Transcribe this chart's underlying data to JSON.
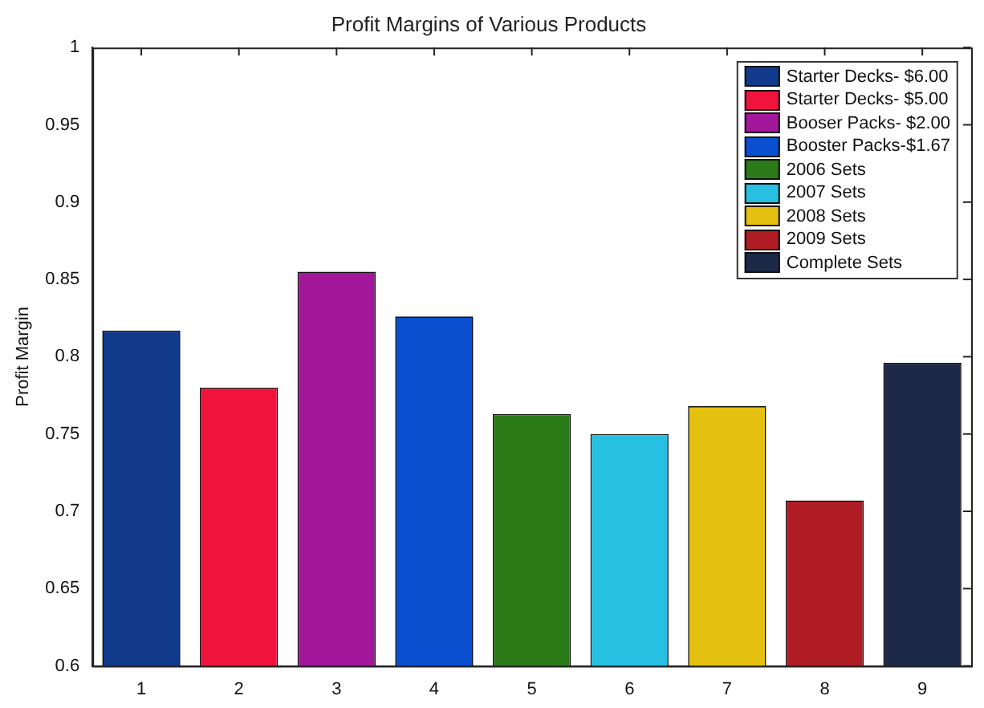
{
  "chart_data": {
    "type": "bar",
    "title": "Profit Margins of Various Products",
    "ylabel": "Profit Margin",
    "categories": [
      "1",
      "2",
      "3",
      "4",
      "5",
      "6",
      "7",
      "8",
      "9"
    ],
    "series": [
      {
        "name": "Starter Decks- $6.00",
        "color": "#123a8c",
        "values": [
          0.817,
          null,
          null,
          null,
          null,
          null,
          null,
          null,
          null
        ]
      },
      {
        "name": "Starter Decks- $5.00",
        "color": "#f0143c",
        "values": [
          null,
          0.78,
          null,
          null,
          null,
          null,
          null,
          null,
          null
        ]
      },
      {
        "name": "Booser Packs- $2.00",
        "color": "#a3189a",
        "values": [
          null,
          null,
          0.855,
          null,
          null,
          null,
          null,
          null,
          null
        ]
      },
      {
        "name": "Booster Packs-$1.67",
        "color": "#0a4fd0",
        "values": [
          null,
          null,
          null,
          0.826,
          null,
          null,
          null,
          null,
          null
        ]
      },
      {
        "name": "2006 Sets",
        "color": "#2a7a18",
        "values": [
          null,
          null,
          null,
          null,
          0.763,
          null,
          null,
          null,
          null
        ]
      },
      {
        "name": "2007 Sets",
        "color": "#28c0e0",
        "values": [
          null,
          null,
          null,
          null,
          null,
          0.75,
          null,
          null,
          null
        ]
      },
      {
        "name": "2008 Sets",
        "color": "#e4c010",
        "values": [
          null,
          null,
          null,
          null,
          null,
          null,
          0.768,
          null,
          null
        ]
      },
      {
        "name": "2009 Sets",
        "color": "#b01c24",
        "values": [
          null,
          null,
          null,
          null,
          null,
          null,
          null,
          0.707,
          null
        ]
      },
      {
        "name": "Complete Sets",
        "color": "#1c2a48",
        "values": [
          null,
          null,
          null,
          null,
          null,
          null,
          null,
          null,
          0.796
        ]
      }
    ],
    "ylim": [
      0.6,
      1
    ],
    "yticks": [
      0.6,
      0.65,
      0.7,
      0.75,
      0.8,
      0.85,
      0.9,
      0.95,
      1
    ],
    "legend": "top right"
  }
}
